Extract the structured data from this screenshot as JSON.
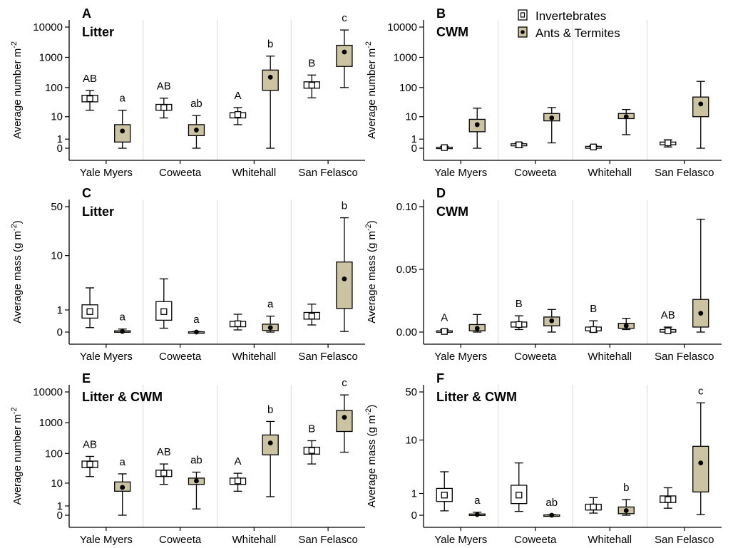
{
  "legend": {
    "items": [
      {
        "label": "Invertebrates",
        "kind": "invert"
      },
      {
        "label": "Ants & Termites",
        "kind": "ant"
      }
    ]
  },
  "colors": {
    "ant_fill": "#cbc3a1",
    "invert_fill": "#ffffff",
    "stroke": "#000000",
    "separator": "#d9d9d9"
  },
  "chart_data": [
    {
      "id": "A",
      "type": "box",
      "panel_letter": "A",
      "title": "Litter",
      "ylabel": "Average number m",
      "ylabel_sup": "-2",
      "ylabel_suffix": "",
      "scale": "log1p",
      "yticks": [
        0,
        1,
        10,
        100,
        1000,
        10000
      ],
      "ytick_labels": [
        "0",
        "1",
        "10",
        "100",
        "1000",
        "10000"
      ],
      "categories": [
        "Yale Myers",
        "Coweeta",
        "Whitehall",
        "San Felasco"
      ],
      "series": [
        {
          "name": "Invertebrates",
          "kind": "invert",
          "boxes": [
            {
              "min": 17,
              "q1": 33,
              "med": 42,
              "q3": 55,
              "max": 80,
              "label": "AB"
            },
            {
              "min": 9,
              "q1": 17,
              "med": 21,
              "q3": 27,
              "max": 44,
              "label": "AB"
            },
            {
              "min": 5,
              "q1": 9,
              "med": 12,
              "q3": 14,
              "max": 21,
              "label": "A"
            },
            {
              "min": 45,
              "q1": 95,
              "med": 120,
              "q3": 155,
              "max": 260,
              "label": "B"
            }
          ]
        },
        {
          "name": "Ants & Termites",
          "kind": "ant",
          "boxes": [
            {
              "min": 0,
              "q1": 0.6,
              "med": 2.7,
              "q3": 5,
              "max": 17,
              "label": "a"
            },
            {
              "min": 0,
              "q1": 1.6,
              "med": 3,
              "q3": 5,
              "max": 11,
              "label": "ab"
            },
            {
              "min": 0,
              "q1": 80,
              "med": 220,
              "q3": 380,
              "max": 1100,
              "label": "b"
            },
            {
              "min": 100,
              "q1": 500,
              "med": 1500,
              "q3": 2500,
              "max": 8000,
              "label": "c"
            }
          ]
        }
      ]
    },
    {
      "id": "B",
      "type": "box",
      "panel_letter": "B",
      "title": "CWM",
      "ylabel": "Average number m",
      "ylabel_sup": "-2",
      "ylabel_suffix": "",
      "scale": "log1p",
      "yticks": [
        0,
        1,
        10,
        100,
        1000,
        10000
      ],
      "ytick_labels": [
        "0",
        "1",
        "10",
        "100",
        "1000",
        "10000"
      ],
      "categories": [
        "Yale Myers",
        "Coweeta",
        "Whitehall",
        "San Felasco"
      ],
      "series": [
        {
          "name": "Invertebrates",
          "kind": "invert",
          "boxes": [
            {
              "min": 0,
              "q1": 0,
              "med": 0.05,
              "q3": 0.08,
              "max": 0.15,
              "label": ""
            },
            {
              "min": 0.05,
              "q1": 0.2,
              "med": 0.3,
              "q3": 0.4,
              "max": 0.5,
              "label": ""
            },
            {
              "min": 0,
              "q1": 0,
              "med": 0.1,
              "q3": 0.15,
              "max": 0.2,
              "label": ""
            },
            {
              "min": 0.1,
              "q1": 0.3,
              "med": 0.5,
              "q3": 0.6,
              "max": 0.9,
              "label": ""
            }
          ]
        },
        {
          "name": "Ants & Termites",
          "kind": "ant",
          "boxes": [
            {
              "min": 0,
              "q1": 2.5,
              "med": 5,
              "q3": 8,
              "max": 20,
              "label": ""
            },
            {
              "min": 0.5,
              "q1": 7,
              "med": 9,
              "q3": 13,
              "max": 21,
              "label": ""
            },
            {
              "min": 1.8,
              "q1": 8.5,
              "med": 10,
              "q3": 13,
              "max": 18,
              "label": ""
            },
            {
              "min": 0,
              "q1": 10,
              "med": 28,
              "q3": 48,
              "max": 160,
              "label": ""
            }
          ]
        }
      ]
    },
    {
      "id": "C",
      "type": "box",
      "panel_letter": "C",
      "title": "Litter",
      "ylabel": "Average mass (g m",
      "ylabel_sup": "-2",
      "ylabel_suffix": ")",
      "scale": "log1p",
      "yticks": [
        0,
        1,
        10,
        50
      ],
      "ytick_labels": [
        "0",
        "1",
        "10",
        "50"
      ],
      "categories": [
        "Yale Myers",
        "Coweeta",
        "Whitehall",
        "San Felasco"
      ],
      "series": [
        {
          "name": "Invertebrates",
          "kind": "invert",
          "boxes": [
            {
              "min": 0.15,
              "q1": 0.55,
              "med": 0.9,
              "q3": 1.35,
              "max": 3.0,
              "label": ""
            },
            {
              "min": 0.13,
              "q1": 0.45,
              "med": 0.9,
              "q3": 1.6,
              "max": 4.3,
              "label": ""
            },
            {
              "min": 0.07,
              "q1": 0.18,
              "med": 0.3,
              "q3": 0.4,
              "max": 0.75,
              "label": ""
            },
            {
              "min": 0.25,
              "q1": 0.5,
              "med": 0.65,
              "q3": 0.85,
              "max": 1.4,
              "label": ""
            }
          ]
        },
        {
          "name": "Ants & Termites",
          "kind": "ant",
          "boxes": [
            {
              "min": 0,
              "q1": 0,
              "med": 0.02,
              "q3": 0.04,
              "max": 0.1,
              "label": "a"
            },
            {
              "min": 0,
              "q1": 0,
              "med": 0,
              "q3": 0.01,
              "max": 0.02,
              "label": "a"
            },
            {
              "min": 0,
              "q1": 0.05,
              "med": 0.15,
              "q3": 0.28,
              "max": 0.65,
              "label": "a"
            },
            {
              "min": 0.02,
              "q1": 1.1,
              "med": 4.3,
              "q3": 8,
              "max": 35,
              "label": "b"
            }
          ]
        }
      ]
    },
    {
      "id": "D",
      "type": "box",
      "panel_letter": "D",
      "title": "CWM",
      "ylabel": "Average mass (g m",
      "ylabel_sup": "-2",
      "ylabel_suffix": ")",
      "scale": "linear",
      "yticks": [
        0,
        0.05,
        0.1
      ],
      "ytick_labels": [
        "0.00",
        "0.05",
        "0.10"
      ],
      "categories": [
        "Yale Myers",
        "Coweeta",
        "Whitehall",
        "San Felasco"
      ],
      "series": [
        {
          "name": "Invertebrates",
          "kind": "invert",
          "boxes": [
            {
              "min": 0,
              "q1": 0,
              "med": 0.0005,
              "q3": 0.001,
              "max": 0.002,
              "label": "A"
            },
            {
              "min": 0.002,
              "q1": 0.004,
              "med": 0.006,
              "q3": 0.008,
              "max": 0.013,
              "label": "B"
            },
            {
              "min": 0,
              "q1": 0.001,
              "med": 0.002,
              "q3": 0.004,
              "max": 0.009,
              "label": "B"
            },
            {
              "min": 0,
              "q1": 0,
              "med": 0.001,
              "q3": 0.002,
              "max": 0.004,
              "label": "AB"
            }
          ]
        },
        {
          "name": "Ants & Termites",
          "kind": "ant",
          "boxes": [
            {
              "min": 0,
              "q1": 0.001,
              "med": 0.003,
              "q3": 0.006,
              "max": 0.014,
              "label": ""
            },
            {
              "min": 0,
              "q1": 0.005,
              "med": 0.009,
              "q3": 0.012,
              "max": 0.018,
              "label": ""
            },
            {
              "min": 0.002,
              "q1": 0.003,
              "med": 0.005,
              "q3": 0.007,
              "max": 0.011,
              "label": ""
            },
            {
              "min": 0,
              "q1": 0.004,
              "med": 0.015,
              "q3": 0.026,
              "max": 0.09,
              "label": ""
            }
          ]
        }
      ]
    },
    {
      "id": "E",
      "type": "box",
      "panel_letter": "E",
      "title": "Litter & CWM",
      "ylabel": "Average number m",
      "ylabel_sup": "-2",
      "ylabel_suffix": "",
      "scale": "log1p",
      "yticks": [
        0,
        1,
        10,
        100,
        1000,
        10000
      ],
      "ytick_labels": [
        "0",
        "1",
        "10",
        "100",
        "1000",
        "10000"
      ],
      "categories": [
        "Yale Myers",
        "Coweeta",
        "Whitehall",
        "San Felasco"
      ],
      "series": [
        {
          "name": "Invertebrates",
          "kind": "invert",
          "boxes": [
            {
              "min": 17,
              "q1": 34,
              "med": 44,
              "q3": 56,
              "max": 80,
              "label": "AB"
            },
            {
              "min": 9,
              "q1": 17,
              "med": 22,
              "q3": 28,
              "max": 45,
              "label": "AB"
            },
            {
              "min": 5,
              "q1": 9,
              "med": 12,
              "q3": 15,
              "max": 22,
              "label": "A"
            },
            {
              "min": 45,
              "q1": 95,
              "med": 125,
              "q3": 160,
              "max": 260,
              "label": "B"
            }
          ]
        },
        {
          "name": "Ants & Termites",
          "kind": "ant",
          "boxes": [
            {
              "min": 0,
              "q1": 5,
              "med": 7,
              "q3": 11,
              "max": 21,
              "label": "a"
            },
            {
              "min": 0.6,
              "q1": 9,
              "med": 12,
              "q3": 15,
              "max": 24,
              "label": "ab"
            },
            {
              "min": 3,
              "q1": 90,
              "med": 220,
              "q3": 400,
              "max": 1100,
              "label": "b"
            },
            {
              "min": 110,
              "q1": 520,
              "med": 1500,
              "q3": 2500,
              "max": 8000,
              "label": "c"
            }
          ]
        }
      ]
    },
    {
      "id": "F",
      "type": "box",
      "panel_letter": "F",
      "title": "Litter & CWM",
      "ylabel": "Average mass (g m",
      "ylabel_sup": "-2",
      "ylabel_suffix": ")",
      "scale": "log1p",
      "yticks": [
        0,
        1,
        10,
        50
      ],
      "ytick_labels": [
        "0",
        "1",
        "10",
        "50"
      ],
      "categories": [
        "Yale Myers",
        "Coweeta",
        "Whitehall",
        "San Felasco"
      ],
      "series": [
        {
          "name": "Invertebrates",
          "kind": "invert",
          "boxes": [
            {
              "min": 0.15,
              "q1": 0.55,
              "med": 0.9,
              "q3": 1.35,
              "max": 3.0,
              "label": ""
            },
            {
              "min": 0.13,
              "q1": 0.45,
              "med": 0.9,
              "q3": 1.6,
              "max": 4.3,
              "label": ""
            },
            {
              "min": 0.07,
              "q1": 0.18,
              "med": 0.3,
              "q3": 0.42,
              "max": 0.75,
              "label": ""
            },
            {
              "min": 0.25,
              "q1": 0.5,
              "med": 0.65,
              "q3": 0.85,
              "max": 1.4,
              "label": ""
            }
          ]
        },
        {
          "name": "Ants & Termites",
          "kind": "ant",
          "boxes": [
            {
              "min": 0,
              "q1": 0,
              "med": 0.02,
              "q3": 0.04,
              "max": 0.1,
              "label": "a"
            },
            {
              "min": 0,
              "q1": 0,
              "med": 0,
              "q3": 0.01,
              "max": 0.02,
              "label": "ab"
            },
            {
              "min": 0,
              "q1": 0.05,
              "med": 0.16,
              "q3": 0.3,
              "max": 0.65,
              "label": "b"
            },
            {
              "min": 0.02,
              "q1": 1.1,
              "med": 4.3,
              "q3": 8,
              "max": 35,
              "label": "c"
            }
          ]
        }
      ]
    }
  ]
}
